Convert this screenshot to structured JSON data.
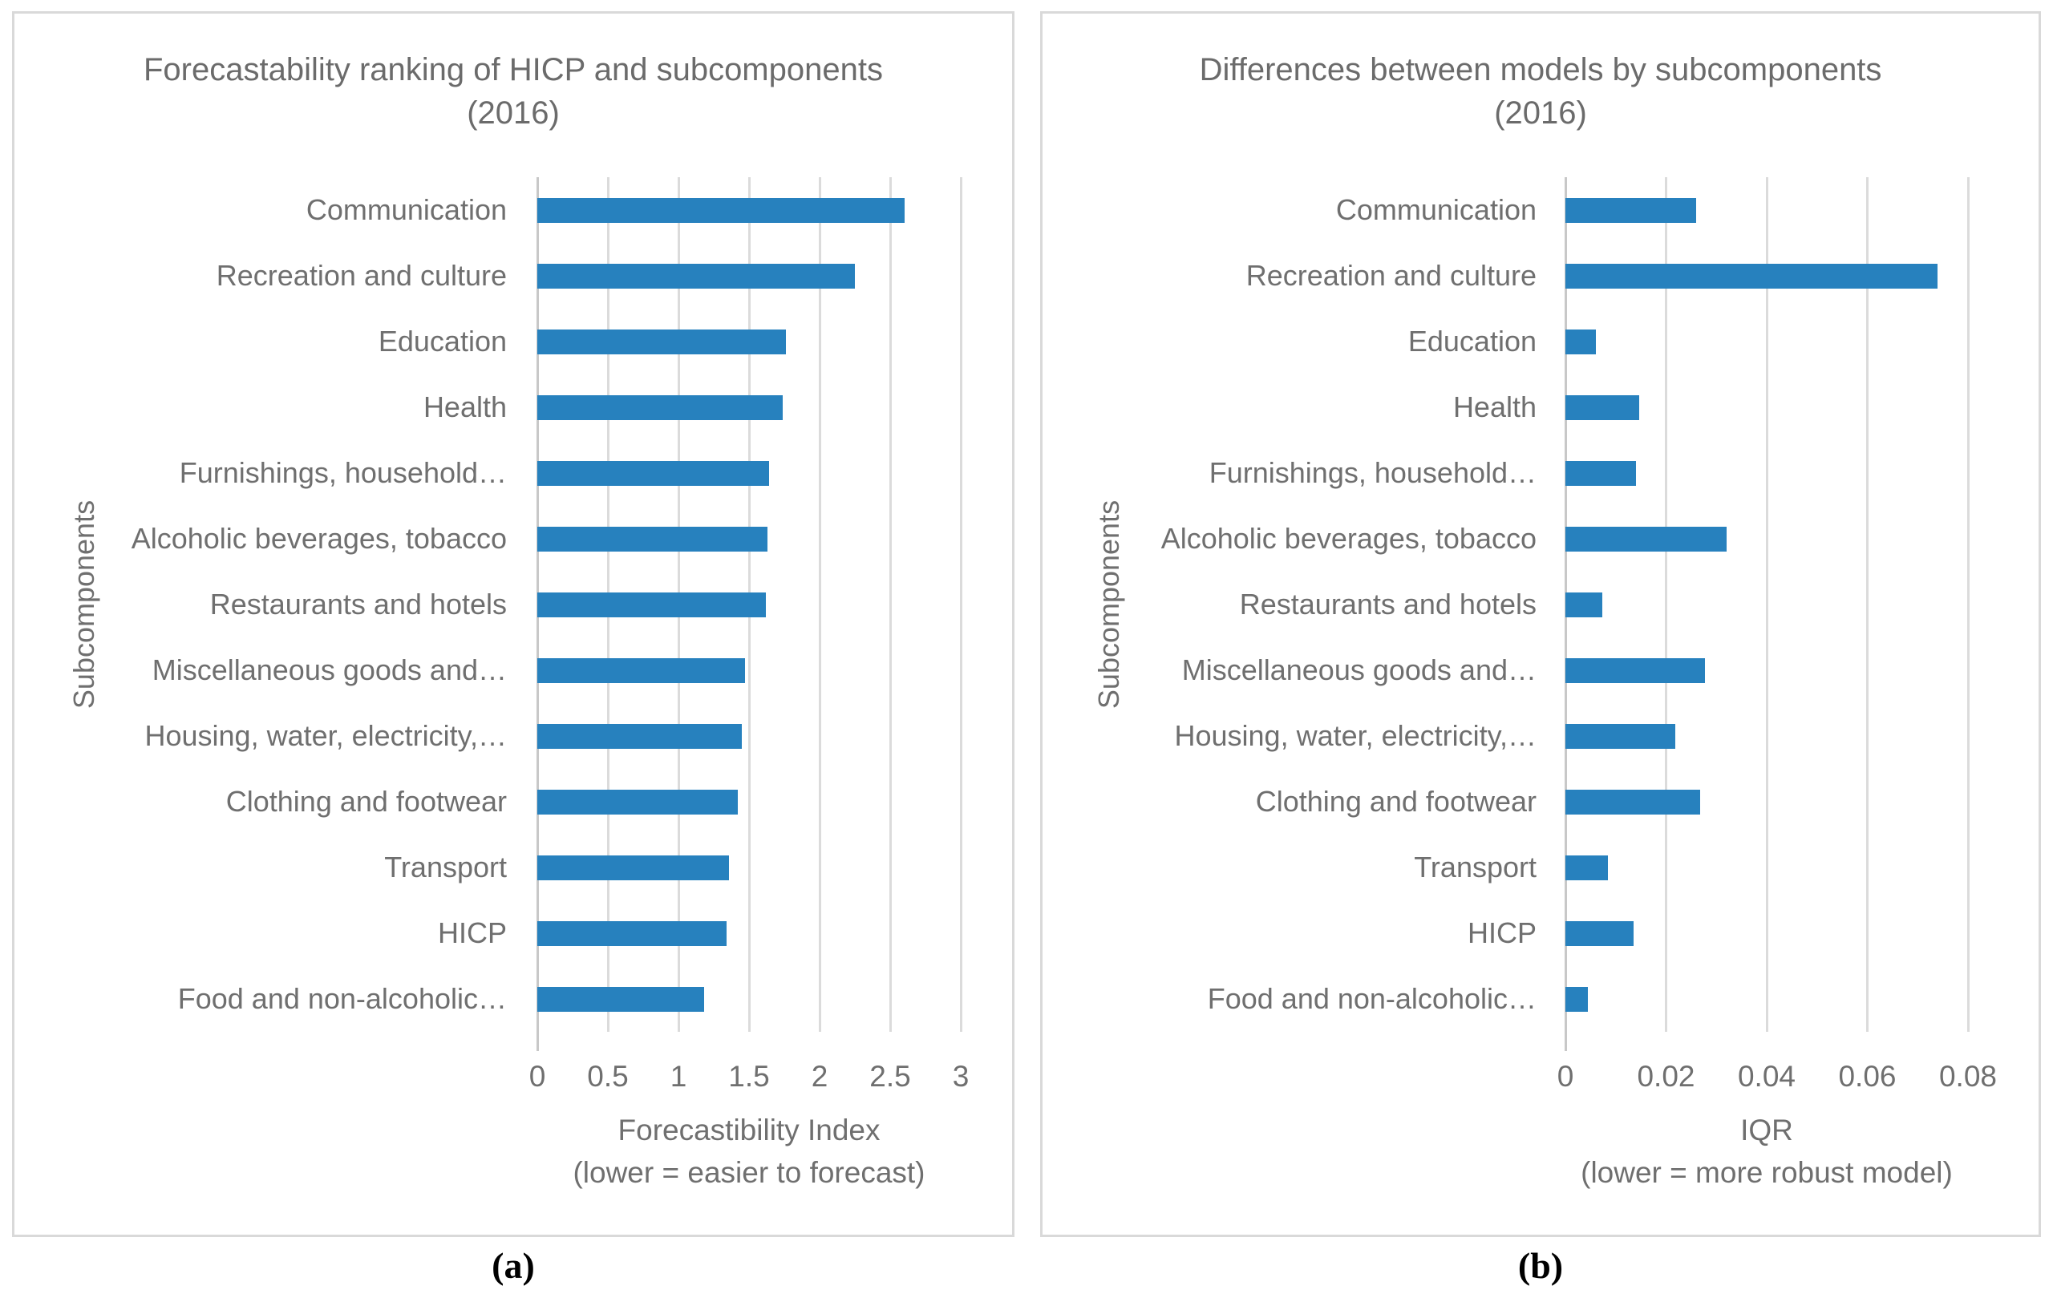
{
  "figure": {
    "caption_a": "(a)",
    "caption_b": "(b)",
    "colors": {
      "bar": "#2781BE",
      "gridline": "#dbdbdb",
      "axis_line": "#c8c8c8",
      "panel_border": "#d9d9d9",
      "text": "#6f6f6f"
    }
  },
  "chart_data": [
    {
      "type": "bar",
      "orientation": "horizontal",
      "title": "Forecastability ranking of HICP and subcomponents",
      "subtitle": "(2016)",
      "xlabel": "Forecastibility Index",
      "xlabel_note": "(lower = easier to forecast)",
      "ylabel": "Subcomponents",
      "grid": true,
      "legend": null,
      "xlim": [
        0,
        3
      ],
      "xticks": [
        0,
        0.5,
        1,
        1.5,
        2,
        2.5,
        3
      ],
      "xtick_labels": [
        "0",
        "0.5",
        "1",
        "1.5",
        "2",
        "2.5",
        "3"
      ],
      "categories": [
        "Communication",
        "Recreation and culture",
        "Education",
        "Health",
        "Furnishings, household…",
        "Alcoholic beverages, tobacco",
        "Restaurants and hotels",
        "Miscellaneous goods and…",
        "Housing, water, electricity,…",
        "Clothing and footwear",
        "Transport",
        "HICP",
        "Food and non-alcoholic…"
      ],
      "values": [
        2.6,
        2.25,
        1.76,
        1.74,
        1.64,
        1.63,
        1.62,
        1.47,
        1.45,
        1.42,
        1.36,
        1.34,
        1.18
      ]
    },
    {
      "type": "bar",
      "orientation": "horizontal",
      "title": "Differences between models by subcomponents",
      "subtitle": "(2016)",
      "xlabel": "IQR",
      "xlabel_note": "(lower = more robust model)",
      "ylabel": "Subcomponents",
      "grid": true,
      "legend": null,
      "xlim": [
        0,
        0.08
      ],
      "xticks": [
        0,
        0.02,
        0.04,
        0.06,
        0.08
      ],
      "xtick_labels": [
        "0",
        "0.02",
        "0.04",
        "0.06",
        "0.08"
      ],
      "categories": [
        "Communication",
        "Recreation and culture",
        "Education",
        "Health",
        "Furnishings, household…",
        "Alcoholic beverages, tobacco",
        "Restaurants and hotels",
        "Miscellaneous goods and…",
        "Housing, water, electricity,…",
        "Clothing and footwear",
        "Transport",
        "HICP",
        "Food and non-alcoholic…"
      ],
      "values": [
        0.026,
        0.074,
        0.006,
        0.0147,
        0.0141,
        0.032,
        0.0073,
        0.0277,
        0.0219,
        0.0268,
        0.0084,
        0.0136,
        0.0045
      ]
    }
  ]
}
